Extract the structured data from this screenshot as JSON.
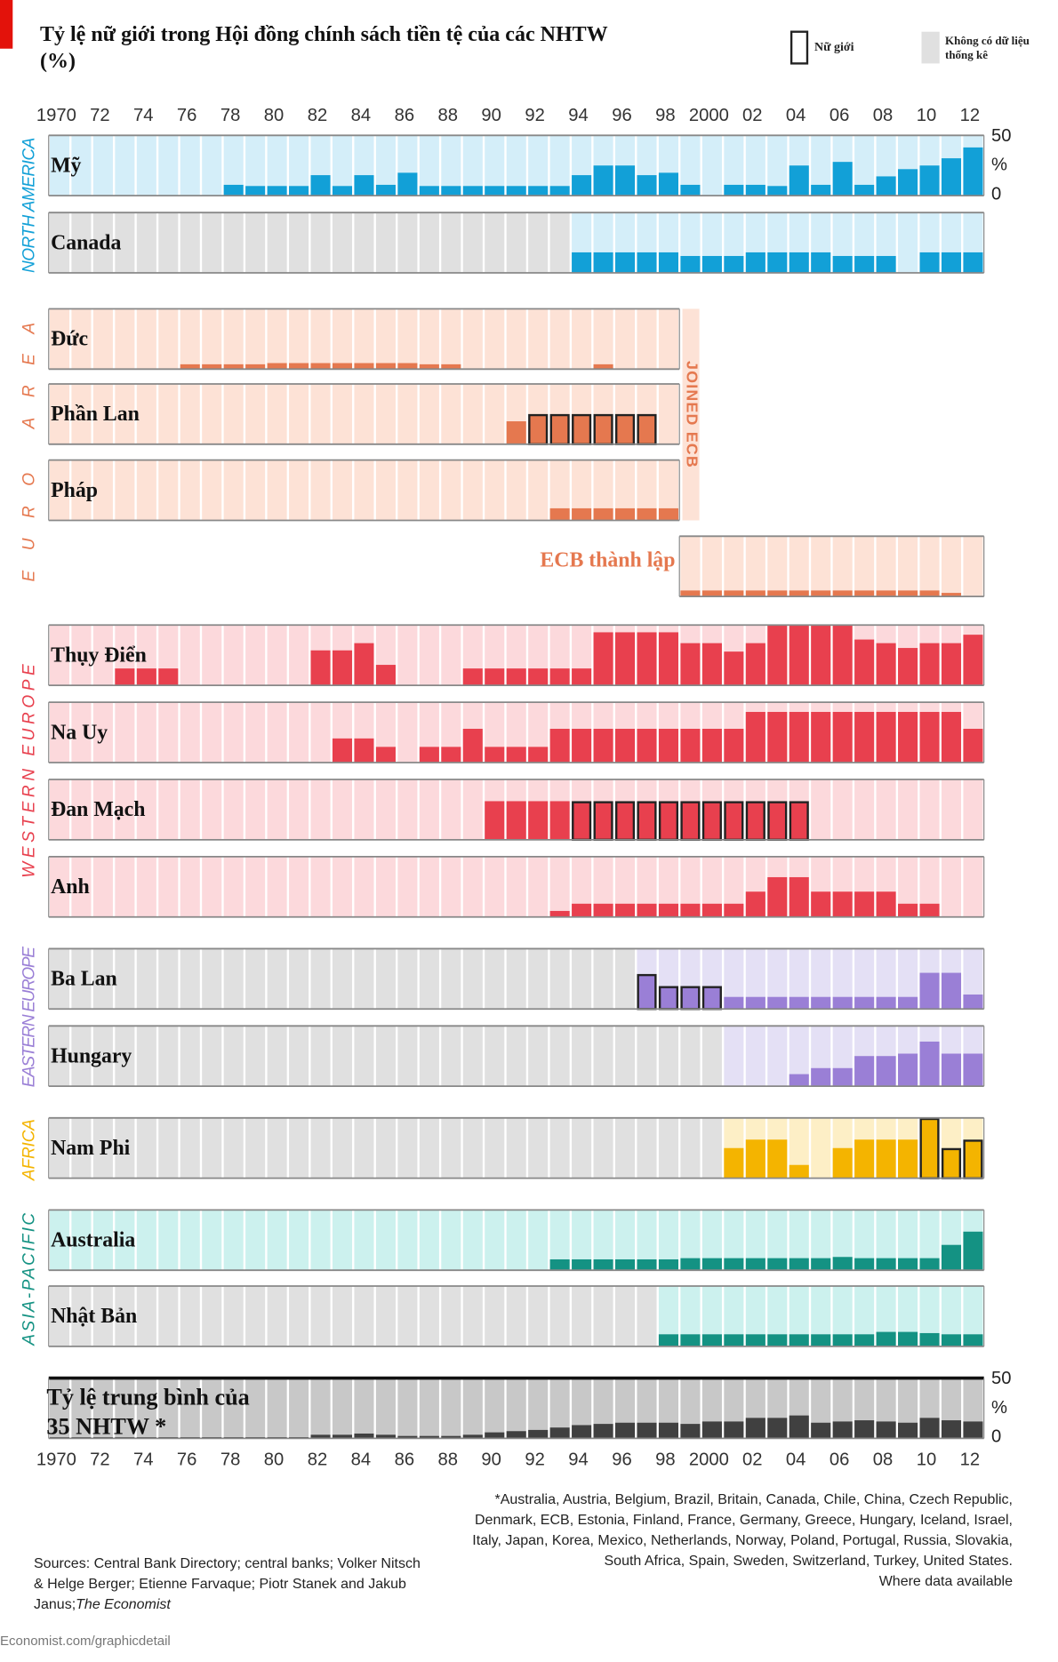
{
  "title": "Tỷ lệ nữ giới trong Hội đồng chính sách tiền tệ của các NHTW (%)",
  "legend": {
    "female_chair": "Nữ giới",
    "no_data": "Không có dữ liệu thống kê"
  },
  "footnote": "*Australia, Austria, Belgium, Brazil, Britain, Canada, Chile, China, Czech Republic, Denmark, ECB, Estonia, Finland, France, Germany, Greece, Hungary, Iceland, Israel, Italy, Japan, Korea, Mexico, Netherlands, Norway, Poland, Portugal, Russia, Slovakia, South Africa, Spain, Sweden, Switzerland, Turkey, United States.",
  "footnote_note": "Where data available",
  "sources": "Sources: Central Bank Directory; central banks; Volker Nitsch & Helge Berger; Etienne Farvaque; Piotr Stanek and Jakub Janus;",
  "sources_publisher": "The Economist",
  "footer": "Economist.com/graphicdetail",
  "chart_data": {
    "type": "bar",
    "xlim": [
      1969.5,
      2012.5
    ],
    "xticks": [
      1970,
      {
        "value": 1972,
        "label": "72"
      },
      {
        "value": 1974,
        "label": "74"
      },
      {
        "value": 1976,
        "label": "76"
      },
      {
        "value": 1978,
        "label": "78"
      },
      {
        "value": 1980,
        "label": "80"
      },
      {
        "value": 1982,
        "label": "82"
      },
      {
        "value": 1984,
        "label": "84"
      },
      {
        "value": 1986,
        "label": "86"
      },
      {
        "value": 1988,
        "label": "88"
      },
      {
        "value": 1990,
        "label": "90"
      },
      {
        "value": 1992,
        "label": "92"
      },
      {
        "value": 1994,
        "label": "94"
      },
      {
        "value": 1996,
        "label": "96"
      },
      {
        "value": 1998,
        "label": "98"
      },
      2000,
      {
        "value": 2002,
        "label": "02"
      },
      {
        "value": 2004,
        "label": "04"
      },
      {
        "value": 2006,
        "label": "06"
      },
      {
        "value": 2008,
        "label": "08"
      },
      {
        "value": 2010,
        "label": "10"
      },
      {
        "value": 2012,
        "label": "12"
      }
    ],
    "ylim": [
      0,
      50
    ],
    "yticks": [
      0,
      50
    ],
    "unit": "%",
    "no_data_color": "#e0e0e0",
    "female_chair_color": "#222222",
    "joined_ecb": "JOINED ECB",
    "regions": [
      {
        "name": "NORTH AMERICA",
        "color": "#12a0d7",
        "background": "#d4eef9",
        "series": [
          {
            "name": "Mỹ",
            "values": [
              0,
              0,
              0,
              0,
              0,
              0,
              0,
              0,
              9,
              8,
              8,
              8,
              17,
              8,
              17,
              9,
              19,
              8,
              8,
              8,
              8,
              8,
              8,
              8,
              17,
              25,
              25,
              17,
              19,
              9,
              0,
              9,
              9,
              8,
              25,
              9,
              28,
              9,
              16,
              22,
              25,
              31,
              40
            ]
          },
          {
            "name": "Canada",
            "values": [
              null,
              null,
              null,
              null,
              null,
              null,
              null,
              null,
              null,
              null,
              null,
              null,
              null,
              null,
              null,
              null,
              null,
              null,
              null,
              null,
              null,
              null,
              null,
              null,
              17,
              17,
              17,
              17,
              17,
              14,
              14,
              14,
              17,
              17,
              17,
              17,
              14,
              14,
              14,
              0,
              17,
              17,
              17
            ]
          }
        ]
      },
      {
        "name": "EURO AREA",
        "color": "#e5784f",
        "background": "#fde2d6",
        "series": [
          {
            "name": "Đức",
            "start": 1970,
            "values": [
              0,
              0,
              0,
              0,
              0,
              0,
              4,
              4,
              4,
              4,
              5,
              5,
              5,
              5,
              5,
              5,
              5,
              4,
              4,
              0,
              0,
              0,
              0,
              0,
              0,
              4,
              0,
              0,
              0
            ]
          },
          {
            "name": "Phần Lan",
            "start": 1970,
            "values": [
              0,
              0,
              0,
              0,
              0,
              0,
              0,
              0,
              0,
              0,
              0,
              0,
              0,
              0,
              0,
              0,
              0,
              0,
              0,
              0,
              0,
              19,
              25,
              25,
              25,
              25,
              25,
              25,
              0
            ],
            "female_chair": [
              1992,
              1993,
              1994,
              1995,
              1996,
              1997
            ]
          },
          {
            "name": "Pháp",
            "start": 1970,
            "values": [
              0,
              0,
              0,
              0,
              0,
              0,
              0,
              0,
              0,
              0,
              0,
              0,
              0,
              0,
              0,
              0,
              0,
              0,
              0,
              0,
              0,
              0,
              0,
              10,
              10,
              10,
              10,
              10,
              10
            ]
          },
          {
            "name": "ECB thành lập",
            "start": 1999,
            "values": [
              5,
              5,
              5,
              5,
              5,
              5,
              5,
              5,
              5,
              5,
              5,
              5,
              3,
              0
            ]
          }
        ]
      },
      {
        "name": "WESTERN EUROPE",
        "color": "#e8404e",
        "background": "#fcd9dc",
        "series": [
          {
            "name": "Thụy Điển",
            "values": [
              0,
              0,
              0,
              14,
              14,
              14,
              0,
              0,
              0,
              0,
              0,
              0,
              29,
              29,
              35,
              17,
              0,
              0,
              0,
              14,
              14,
              14,
              14,
              14,
              14,
              44,
              44,
              44,
              44,
              35,
              35,
              28,
              35,
              50,
              50,
              50,
              50,
              38,
              35,
              31,
              35,
              35,
              42
            ]
          },
          {
            "name": "Na Uy",
            "values": [
              0,
              0,
              0,
              0,
              0,
              0,
              0,
              0,
              0,
              0,
              0,
              0,
              0,
              20,
              20,
              13,
              0,
              13,
              13,
              28,
              13,
              13,
              13,
              28,
              28,
              28,
              28,
              28,
              28,
              28,
              28,
              28,
              42,
              42,
              42,
              42,
              42,
              42,
              42,
              42,
              42,
              42,
              28
            ]
          },
          {
            "name": "Đan Mạch",
            "values": [
              0,
              0,
              0,
              0,
              0,
              0,
              0,
              0,
              0,
              0,
              0,
              0,
              0,
              0,
              0,
              0,
              0,
              0,
              0,
              0,
              32,
              32,
              32,
              32,
              32,
              32,
              32,
              32,
              32,
              32,
              32,
              32,
              32,
              32,
              32,
              0,
              0,
              0,
              0,
              0,
              0,
              0,
              0
            ],
            "female_chair": [
              1994,
              1995,
              1996,
              1997,
              1998,
              1999,
              2000,
              2001,
              2002,
              2003,
              2004
            ]
          },
          {
            "name": "Anh",
            "values": [
              0,
              0,
              0,
              0,
              0,
              0,
              0,
              0,
              0,
              0,
              0,
              0,
              0,
              0,
              0,
              0,
              0,
              0,
              0,
              0,
              0,
              0,
              0,
              5,
              11,
              11,
              11,
              11,
              11,
              11,
              11,
              11,
              21,
              33,
              33,
              21,
              21,
              21,
              21,
              11,
              11,
              0,
              0
            ]
          }
        ]
      },
      {
        "name": "EASTERN EUROPE",
        "color": "#9a7fd6",
        "background": "#e4e0f5",
        "series": [
          {
            "name": "Ba Lan",
            "values": [
              null,
              null,
              null,
              null,
              null,
              null,
              null,
              null,
              null,
              null,
              null,
              null,
              null,
              null,
              null,
              null,
              null,
              null,
              null,
              null,
              null,
              null,
              null,
              null,
              null,
              null,
              null,
              29,
              19,
              19,
              19,
              10,
              10,
              10,
              10,
              10,
              10,
              10,
              10,
              10,
              30,
              30,
              12
            ],
            "female_chair": [
              1997,
              1998,
              1999,
              2000
            ]
          },
          {
            "name": "Hungary",
            "values": [
              null,
              null,
              null,
              null,
              null,
              null,
              null,
              null,
              null,
              null,
              null,
              null,
              null,
              null,
              null,
              null,
              null,
              null,
              null,
              null,
              null,
              null,
              null,
              null,
              null,
              null,
              null,
              null,
              null,
              null,
              null,
              0,
              0,
              0,
              10,
              15,
              15,
              25,
              25,
              27,
              37,
              27,
              27
            ]
          }
        ]
      },
      {
        "name": "AFRICA",
        "color": "#f4b400",
        "background": "#fdefc6",
        "series": [
          {
            "name": "Nam Phi",
            "values": [
              null,
              null,
              null,
              null,
              null,
              null,
              null,
              null,
              null,
              null,
              null,
              null,
              null,
              null,
              null,
              null,
              null,
              null,
              null,
              null,
              null,
              null,
              null,
              null,
              null,
              null,
              null,
              null,
              null,
              null,
              null,
              25,
              32,
              32,
              11,
              0,
              25,
              32,
              32,
              32,
              50,
              25,
              32
            ],
            "female_chair": [
              2010,
              2011,
              2012
            ]
          }
        ]
      },
      {
        "name": "ASIA-PACIFIC",
        "color": "#149283",
        "background": "#ccf1ee",
        "series": [
          {
            "name": "Australia",
            "values": [
              0,
              0,
              0,
              0,
              0,
              0,
              0,
              0,
              0,
              0,
              0,
              0,
              0,
              0,
              0,
              0,
              0,
              0,
              0,
              0,
              0,
              0,
              0,
              9,
              9,
              9,
              9,
              9,
              9,
              10,
              10,
              10,
              10,
              10,
              10,
              10,
              11,
              10,
              10,
              10,
              10,
              21,
              32
            ]
          },
          {
            "name": "Nhật Bản",
            "values": [
              null,
              null,
              null,
              null,
              null,
              null,
              null,
              null,
              null,
              null,
              null,
              null,
              null,
              null,
              null,
              null,
              null,
              null,
              null,
              null,
              null,
              null,
              null,
              null,
              null,
              null,
              null,
              null,
              10,
              10,
              10,
              10,
              10,
              10,
              10,
              10,
              10,
              10,
              12,
              12,
              11,
              10,
              10
            ]
          }
        ]
      }
    ],
    "average": {
      "name": "Tỷ lệ trung bình của 35 NHTW *",
      "color": "#404040",
      "background": "#c8c8c8",
      "values": [
        1,
        1,
        1,
        1,
        1,
        1,
        1,
        1,
        1,
        1,
        1,
        1,
        3,
        3,
        4,
        3,
        2,
        2,
        2,
        3,
        5,
        6,
        7,
        9,
        11,
        12,
        13,
        13,
        13,
        12,
        14,
        14,
        17,
        17,
        19,
        13,
        14,
        15,
        14,
        13,
        17,
        15,
        14
      ]
    }
  }
}
